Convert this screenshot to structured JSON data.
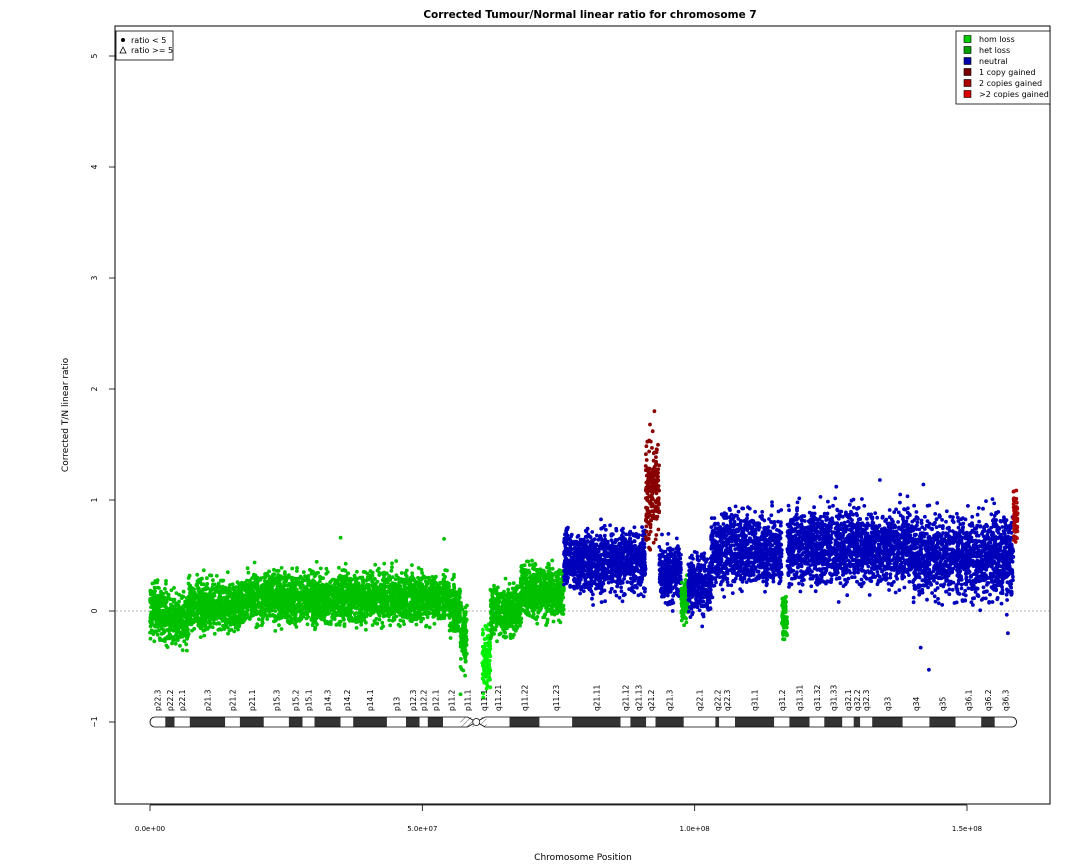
{
  "chart_data": {
    "type": "scatter",
    "title": "Corrected Tumour/Normal linear ratio for chromosome  7",
    "xlabel": "Chromosome Position",
    "ylabel": "Corrected T/N linear ratio",
    "xlim": [
      -2500000,
      162000000
    ],
    "ylim": [
      -1.75,
      5.3
    ],
    "x_ticks": [
      {
        "value": 0,
        "label": "0.0e+00"
      },
      {
        "value": 50000000,
        "label": "5.0e+07"
      },
      {
        "value": 100000000,
        "label": "1.0e+08"
      },
      {
        "value": 150000000,
        "label": "1.5e+08"
      }
    ],
    "y_ticks": [
      {
        "value": -1,
        "label": "−1"
      },
      {
        "value": 0,
        "label": "0"
      },
      {
        "value": 1,
        "label": "1"
      },
      {
        "value": 2,
        "label": "2"
      },
      {
        "value": 3,
        "label": "3"
      },
      {
        "value": 4,
        "label": "4"
      },
      {
        "value": 5,
        "label": "5"
      }
    ],
    "reference_line": 0,
    "shape_legend": {
      "placement": "top-left",
      "entries": [
        {
          "symbol": "dot",
          "label": "ratio < 5"
        },
        {
          "symbol": "triangle",
          "label": "ratio >= 5"
        }
      ]
    },
    "legend": {
      "placement": "top-right",
      "entries": [
        {
          "label": "hom loss",
          "color": "#00cc00"
        },
        {
          "label": "het loss",
          "color": "#00a000"
        },
        {
          "label": "neutral",
          "color": "#0000aa"
        },
        {
          "label": "1 copy gained",
          "color": "#7a0000"
        },
        {
          "label": "2 copies gained",
          "color": "#aa0000"
        },
        {
          "label": ">2 copies gained",
          "color": "#dd0000"
        }
      ]
    },
    "segments": [
      {
        "x": [
          0,
          3000000
        ],
        "mean": 0.0,
        "sd": 0.12,
        "state": "het loss",
        "color": "#00c000"
      },
      {
        "x": [
          3000000,
          7000000
        ],
        "mean": -0.08,
        "sd": 0.11,
        "state": "het loss",
        "color": "#00c000"
      },
      {
        "x": [
          7000000,
          17000000
        ],
        "mean": 0.05,
        "sd": 0.11,
        "state": "het loss",
        "color": "#00c000"
      },
      {
        "x": [
          17000000,
          55000000
        ],
        "mean": 0.12,
        "sd": 0.11,
        "state": "het loss",
        "color": "#00c000"
      },
      {
        "x": [
          55000000,
          57000000
        ],
        "mean": 0.02,
        "sd": 0.11,
        "state": "het loss",
        "color": "#00c000"
      },
      {
        "x": [
          57000000,
          58200000
        ],
        "mean": -0.2,
        "sd": 0.16,
        "state": "het loss",
        "color": "#00c000"
      },
      {
        "x": [
          61000000,
          62500000
        ],
        "mean": -0.42,
        "sd": 0.14,
        "state": "hom loss",
        "color": "#00ee00"
      },
      {
        "x": [
          62500000,
          68000000
        ],
        "mean": 0.0,
        "sd": 0.11,
        "state": "het loss",
        "color": "#00c000"
      },
      {
        "x": [
          68000000,
          76000000
        ],
        "mean": 0.18,
        "sd": 0.12,
        "state": "het loss",
        "color": "#00c000"
      },
      {
        "x": [
          76000000,
          91000000
        ],
        "mean": 0.45,
        "sd": 0.14,
        "state": "neutral",
        "color": "#0000bb"
      },
      {
        "x": [
          91000000,
          93500000
        ],
        "mean": 1.05,
        "sd": 0.22,
        "state": "1 copy gained",
        "color": "#880000"
      },
      {
        "x": [
          93500000,
          97500000
        ],
        "mean": 0.35,
        "sd": 0.13,
        "state": "neutral",
        "color": "#0000bb"
      },
      {
        "x": [
          97500000,
          98800000
        ],
        "mean": 0.1,
        "sd": 0.1,
        "state": "het loss",
        "color": "#00c000"
      },
      {
        "x": [
          98800000,
          103000000
        ],
        "mean": 0.25,
        "sd": 0.13,
        "state": "neutral",
        "color": "#0000bb"
      },
      {
        "x": [
          103000000,
          116000000
        ],
        "mean": 0.55,
        "sd": 0.16,
        "state": "neutral",
        "color": "#0000bb"
      },
      {
        "x": [
          116000000,
          117000000
        ],
        "mean": -0.05,
        "sd": 0.1,
        "state": "het loss",
        "color": "#00c000"
      },
      {
        "x": [
          117000000,
          140000000
        ],
        "mean": 0.58,
        "sd": 0.16,
        "state": "neutral",
        "color": "#0000bb"
      },
      {
        "x": [
          140000000,
          158500000
        ],
        "mean": 0.5,
        "sd": 0.18,
        "state": "neutral",
        "color": "#0000bb"
      },
      {
        "x": [
          158500000,
          159300000
        ],
        "mean": 0.85,
        "sd": 0.12,
        "state": "2 copies gained",
        "color": "#aa0000"
      }
    ],
    "outliers": [
      {
        "x": 92600000,
        "y": 1.8,
        "color": "#880000"
      },
      {
        "x": 91800000,
        "y": 1.68,
        "color": "#880000"
      },
      {
        "x": 92300000,
        "y": 1.62,
        "color": "#880000"
      },
      {
        "x": 143000000,
        "y": -0.53,
        "color": "#0000bb"
      },
      {
        "x": 141500000,
        "y": -0.33,
        "color": "#0000bb"
      },
      {
        "x": 157500000,
        "y": -0.2,
        "color": "#0000bb"
      },
      {
        "x": 57000000,
        "y": -0.75,
        "color": "#00c000"
      },
      {
        "x": 61800000,
        "y": -0.7,
        "color": "#00ee00"
      },
      {
        "x": 35000000,
        "y": 0.66,
        "color": "#00c000"
      },
      {
        "x": 54000000,
        "y": 0.65,
        "color": "#00c000"
      },
      {
        "x": 134000000,
        "y": 1.18,
        "color": "#0000bb"
      },
      {
        "x": 126000000,
        "y": 1.12,
        "color": "#0000bb"
      },
      {
        "x": 142000000,
        "y": 1.14,
        "color": "#0000bb"
      }
    ],
    "ideogram": {
      "y_level": -1,
      "centromere": [
        58300000,
        61500000
      ],
      "bands": [
        {
          "name": "p22.3",
          "start": 0,
          "end": 2800000,
          "stain": "gneg"
        },
        {
          "name": "p22.2",
          "start": 2800000,
          "end": 4500000,
          "stain": "gpos"
        },
        {
          "name": "p22.1",
          "start": 4500000,
          "end": 7300000,
          "stain": "gneg"
        },
        {
          "name": "p21.3",
          "start": 7300000,
          "end": 13800000,
          "stain": "gpos"
        },
        {
          "name": "p21.2",
          "start": 13800000,
          "end": 16500000,
          "stain": "gneg"
        },
        {
          "name": "p21.1",
          "start": 16500000,
          "end": 20900000,
          "stain": "gpos"
        },
        {
          "name": "p15.3",
          "start": 20900000,
          "end": 25500000,
          "stain": "gneg"
        },
        {
          "name": "p15.2",
          "start": 25500000,
          "end": 28000000,
          "stain": "gpos"
        },
        {
          "name": "p15.1",
          "start": 28000000,
          "end": 30200000,
          "stain": "gneg"
        },
        {
          "name": "p14.3",
          "start": 30200000,
          "end": 35000000,
          "stain": "gpos"
        },
        {
          "name": "p14.2",
          "start": 35000000,
          "end": 37300000,
          "stain": "gneg"
        },
        {
          "name": "p14.1",
          "start": 37300000,
          "end": 43500000,
          "stain": "gpos"
        },
        {
          "name": "p13",
          "start": 43500000,
          "end": 47000000,
          "stain": "gneg"
        },
        {
          "name": "p12.3",
          "start": 47000000,
          "end": 49500000,
          "stain": "gpos"
        },
        {
          "name": "p12.2",
          "start": 49500000,
          "end": 51000000,
          "stain": "gneg"
        },
        {
          "name": "p12.1",
          "start": 51000000,
          "end": 53800000,
          "stain": "gpos"
        },
        {
          "name": "p11.2",
          "start": 53800000,
          "end": 57000000,
          "stain": "gneg"
        },
        {
          "name": "p11.1",
          "start": 57000000,
          "end": 59500000,
          "stain": "stalk"
        },
        {
          "name": "q11.1",
          "start": 60800000,
          "end": 61800000,
          "stain": "stalk"
        },
        {
          "name": "q11.21",
          "start": 61800000,
          "end": 66000000,
          "stain": "gneg"
        },
        {
          "name": "q11.22",
          "start": 66000000,
          "end": 71500000,
          "stain": "gpos"
        },
        {
          "name": "q11.23",
          "start": 71500000,
          "end": 77500000,
          "stain": "gneg"
        },
        {
          "name": "q21.11",
          "start": 77500000,
          "end": 86400000,
          "stain": "gpos"
        },
        {
          "name": "q21.12",
          "start": 86400000,
          "end": 88200000,
          "stain": "gneg"
        },
        {
          "name": "q21.13",
          "start": 88200000,
          "end": 91100000,
          "stain": "gpos"
        },
        {
          "name": "q21.2",
          "start": 91100000,
          "end": 92800000,
          "stain": "gneg"
        },
        {
          "name": "q21.3",
          "start": 92800000,
          "end": 98000000,
          "stain": "gpos"
        },
        {
          "name": "q22.1",
          "start": 98000000,
          "end": 103800000,
          "stain": "gneg"
        },
        {
          "name": "q22.2",
          "start": 103800000,
          "end": 104500000,
          "stain": "gpos"
        },
        {
          "name": "q22.3",
          "start": 104500000,
          "end": 107400000,
          "stain": "gneg"
        },
        {
          "name": "q31.1",
          "start": 107400000,
          "end": 114600000,
          "stain": "gpos"
        },
        {
          "name": "q31.2",
          "start": 114600000,
          "end": 117400000,
          "stain": "gneg"
        },
        {
          "name": "q31.31",
          "start": 117400000,
          "end": 121100000,
          "stain": "gpos"
        },
        {
          "name": "q31.32",
          "start": 121100000,
          "end": 123800000,
          "stain": "gneg"
        },
        {
          "name": "q31.33",
          "start": 123800000,
          "end": 127100000,
          "stain": "gpos"
        },
        {
          "name": "q32.1",
          "start": 127100000,
          "end": 129200000,
          "stain": "gneg"
        },
        {
          "name": "q32.2",
          "start": 129200000,
          "end": 130400000,
          "stain": "gpos"
        },
        {
          "name": "q32.3",
          "start": 130400000,
          "end": 132600000,
          "stain": "gneg"
        },
        {
          "name": "q33",
          "start": 132600000,
          "end": 138200000,
          "stain": "gpos"
        },
        {
          "name": "q34",
          "start": 138200000,
          "end": 143100000,
          "stain": "gneg"
        },
        {
          "name": "q35",
          "start": 143100000,
          "end": 147900000,
          "stain": "gpos"
        },
        {
          "name": "q36.1",
          "start": 147900000,
          "end": 152600000,
          "stain": "gneg"
        },
        {
          "name": "q36.2",
          "start": 152600000,
          "end": 155100000,
          "stain": "gpos"
        },
        {
          "name": "q36.3",
          "start": 155100000,
          "end": 159100000,
          "stain": "gneg"
        }
      ]
    }
  }
}
